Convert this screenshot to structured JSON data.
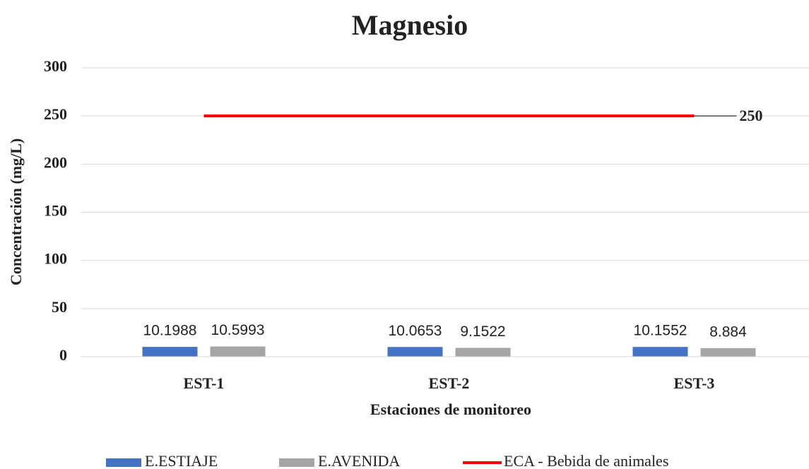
{
  "chart_data": {
    "type": "bar",
    "title": "Magnesio",
    "xlabel": "Estaciones de monitoreo",
    "ylabel": "Concentración (mg/L)",
    "categories": [
      "EST-1",
      "EST-2",
      "EST-3"
    ],
    "series": [
      {
        "name": "E.ESTIAJE",
        "color": "#4472c4",
        "values": [
          10.1988,
          10.0653,
          10.1552
        ]
      },
      {
        "name": "E.AVENIDA",
        "color": "#a5a5a5",
        "values": [
          10.5993,
          9.1522,
          8.884
        ]
      },
      {
        "name": "ECA - Bebida de animales",
        "type": "line",
        "color": "#ff0000",
        "values": [
          250,
          250,
          250
        ]
      }
    ],
    "ylim": [
      0,
      300
    ],
    "yticks": [
      0,
      50,
      100,
      150,
      200,
      250,
      300
    ],
    "grid": true,
    "legend": "bottom"
  }
}
